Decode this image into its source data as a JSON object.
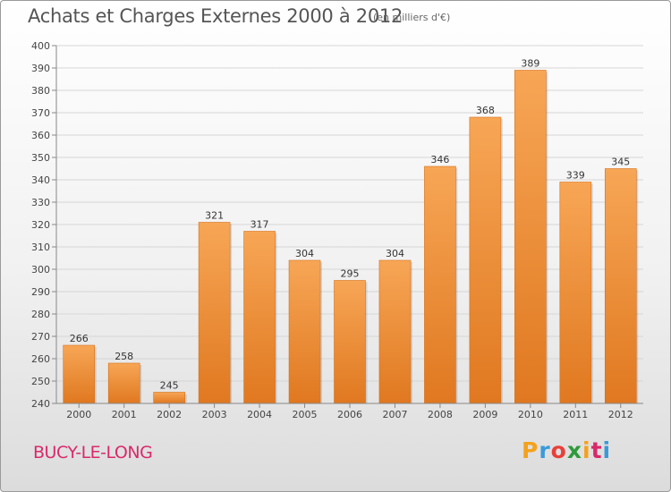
{
  "header": {
    "title": "Achats et Charges Externes 2000 à 2012",
    "subtitle": "(en milliers d'€)"
  },
  "footer": {
    "commune": "BUCY-LE-LONG"
  },
  "logo": {
    "letters": [
      "P",
      "r",
      "o",
      "x",
      "i",
      "t",
      "i"
    ],
    "colors": [
      "#f4a21c",
      "#3a9ad9",
      "#e8403a",
      "#2d9a3b",
      "#f4a21c",
      "#d9296a",
      "#3a9ad9"
    ]
  },
  "colors": {
    "bar_top": "#f7a656",
    "bar_bottom": "#e07820",
    "grid": "#d6d6d6",
    "axis": "#888888"
  },
  "chart_data": {
    "type": "bar",
    "categories": [
      "2000",
      "2001",
      "2002",
      "2003",
      "2004",
      "2005",
      "2006",
      "2007",
      "2008",
      "2009",
      "2010",
      "2011",
      "2012"
    ],
    "values": [
      266,
      258,
      245,
      321,
      317,
      304,
      295,
      304,
      346,
      368,
      389,
      339,
      345
    ],
    "title": "Achats et Charges Externes 2000 à 2012",
    "ylim": [
      240,
      400
    ],
    "yticks": [
      240,
      250,
      260,
      270,
      280,
      290,
      300,
      310,
      320,
      330,
      340,
      350,
      360,
      370,
      380,
      390,
      400
    ],
    "grid": true,
    "data_labels": true
  }
}
